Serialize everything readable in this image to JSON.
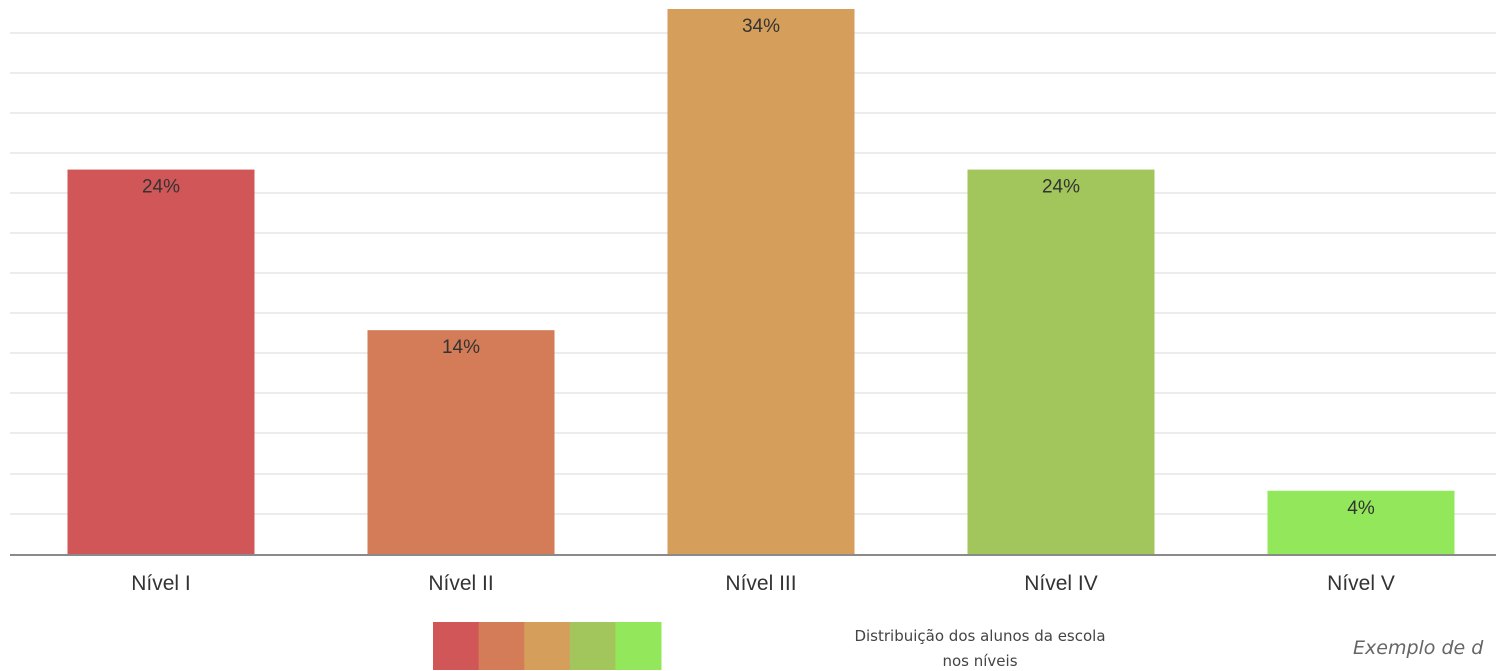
{
  "chart_data": {
    "type": "bar",
    "categories": [
      "Nível I",
      "Nível II",
      "Nível III",
      "Nível IV",
      "Nível V"
    ],
    "values": [
      24,
      14,
      34,
      24,
      4
    ],
    "value_labels": [
      "24%",
      "14%",
      "34%",
      "24%",
      "4%"
    ],
    "colors": [
      "#d15657",
      "#d47b57",
      "#d59e5a",
      "#a2c55c",
      "#92e85a"
    ],
    "ylim": [
      0,
      34
    ],
    "grid": true,
    "legend": {
      "swatches": [
        "#d15657",
        "#d47b57",
        "#d59e5a",
        "#a2c55c",
        "#92e85a"
      ],
      "text_line1": "Distribuição dos alunos da escola",
      "text_line2": "nos níveis"
    },
    "caption": "Exemplo de d"
  }
}
